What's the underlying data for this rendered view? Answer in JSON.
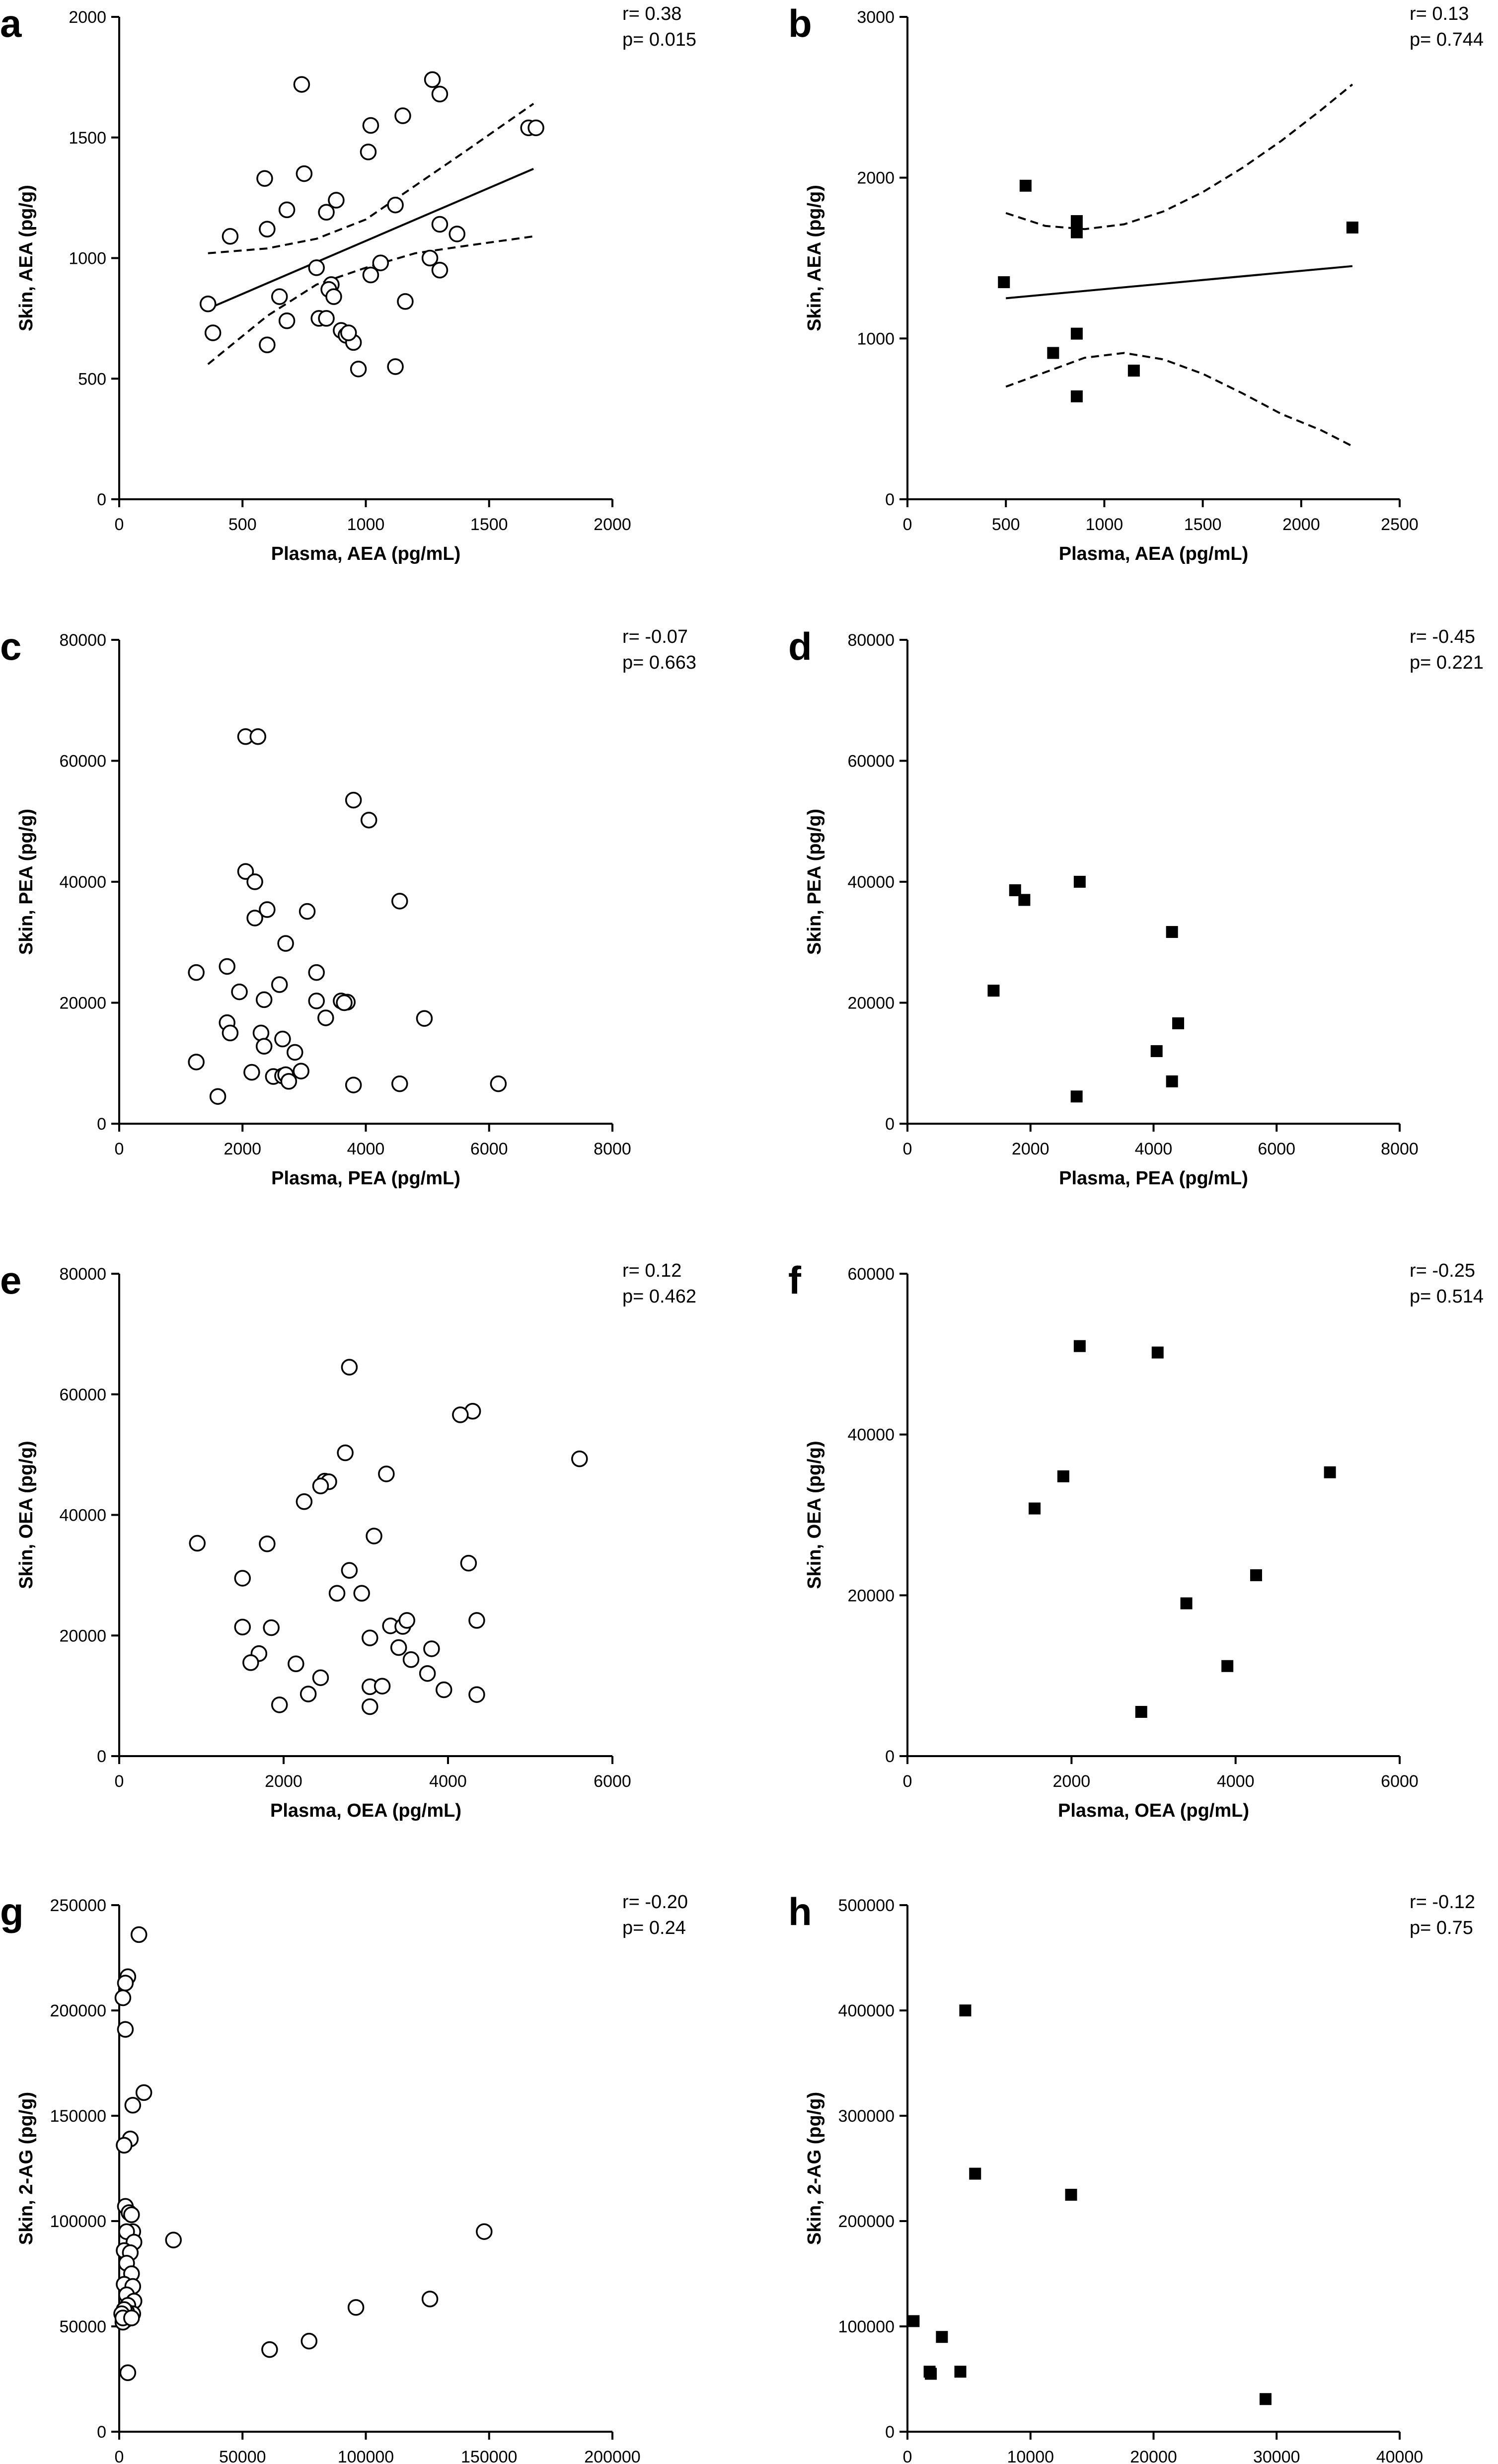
{
  "chart_data": [
    {
      "panel": "a",
      "type": "scatter",
      "marker": "open-circle",
      "xlabel": "Plasma, AEA (pg/mL)",
      "ylabel": "Skin, AEA (pg/g)",
      "xlim": [
        0,
        2000
      ],
      "ylim": [
        0,
        2000
      ],
      "xticks": [
        0,
        500,
        1000,
        1500,
        2000
      ],
      "yticks": [
        0,
        500,
        1000,
        1500,
        2000
      ],
      "xtick_labels": [
        "0",
        "500",
        "1000",
        "1500",
        "2000"
      ],
      "ytick_labels": [
        "0",
        "500",
        "1000",
        "1500",
        "2000"
      ],
      "stats": [
        "r= 0.38",
        "p= 0.015"
      ],
      "regression": {
        "x": [
          360,
          1680
        ],
        "y": [
          790,
          1370
        ]
      },
      "ci_upper": {
        "x": [
          360,
          600,
          800,
          1000,
          1200,
          1400,
          1680
        ],
        "y": [
          1020,
          1040,
          1080,
          1160,
          1300,
          1440,
          1640
        ]
      },
      "ci_lower": {
        "x": [
          360,
          600,
          800,
          1000,
          1200,
          1400,
          1680
        ],
        "y": [
          560,
          760,
          890,
          960,
          1020,
          1050,
          1090
        ]
      },
      "points": {
        "x": [
          740,
          1270,
          1300,
          1150,
          1020,
          1010,
          1660,
          1690,
          750,
          590,
          600,
          450,
          880,
          680,
          840,
          1120,
          1300,
          1370,
          1260,
          1060,
          800,
          360,
          380,
          650,
          860,
          850,
          870,
          680,
          810,
          840,
          900,
          920,
          950,
          1020,
          1160,
          1300,
          600,
          930,
          970,
          1120
        ],
        "y": [
          1720,
          1740,
          1680,
          1590,
          1550,
          1440,
          1540,
          1540,
          1350,
          1330,
          1120,
          1090,
          1240,
          1200,
          1190,
          1220,
          1140,
          1100,
          1000,
          980,
          960,
          810,
          690,
          840,
          890,
          870,
          840,
          740,
          750,
          750,
          700,
          680,
          650,
          930,
          820,
          950,
          640,
          690,
          540,
          550
        ]
      }
    },
    {
      "panel": "b",
      "type": "scatter",
      "marker": "filled-square",
      "xlabel": "Plasma, AEA (pg/mL)",
      "ylabel": "Skin, AEA (pg/g)",
      "xlim": [
        0,
        2500
      ],
      "ylim": [
        0,
        3000
      ],
      "xticks": [
        0,
        500,
        1000,
        1500,
        2000,
        2500
      ],
      "yticks": [
        0,
        1000,
        2000,
        3000
      ],
      "xtick_labels": [
        "0",
        "500",
        "1000",
        "1500",
        "2000",
        "2500"
      ],
      "ytick_labels": [
        "0",
        "1000",
        "2000",
        "3000"
      ],
      "stats": [
        "r= 0.13",
        "p= 0.744"
      ],
      "regression": {
        "x": [
          500,
          2260
        ],
        "y": [
          1250,
          1450
        ]
      },
      "ci_upper": {
        "x": [
          500,
          700,
          900,
          1100,
          1300,
          1500,
          1700,
          1900,
          2100,
          2260
        ],
        "y": [
          1780,
          1700,
          1680,
          1710,
          1790,
          1910,
          2060,
          2230,
          2420,
          2580
        ]
      },
      "ci_lower": {
        "x": [
          500,
          700,
          900,
          1100,
          1300,
          1500,
          1700,
          1900,
          2100,
          2260
        ],
        "y": [
          700,
          790,
          880,
          910,
          870,
          780,
          660,
          530,
          430,
          330
        ]
      },
      "points": {
        "x": [
          600,
          860,
          860,
          2260,
          490,
          860,
          740,
          1150,
          860
        ],
        "y": [
          1950,
          1730,
          1660,
          1690,
          1350,
          1030,
          910,
          800,
          640
        ]
      }
    },
    {
      "panel": "c",
      "type": "scatter",
      "marker": "open-circle",
      "xlabel": "Plasma, PEA (pg/mL)",
      "ylabel": "Skin, PEA (pg/g)",
      "xlim": [
        0,
        8000
      ],
      "ylim": [
        0,
        80000
      ],
      "xticks": [
        0,
        2000,
        4000,
        6000,
        8000
      ],
      "yticks": [
        0,
        20000,
        40000,
        60000,
        80000
      ],
      "xtick_labels": [
        "0",
        "2000",
        "4000",
        "6000",
        "8000"
      ],
      "ytick_labels": [
        "0",
        "20000",
        "40000",
        "60000",
        "80000"
      ],
      "stats": [
        "r= -0.07",
        "p= 0.663"
      ],
      "points": {
        "x": [
          2050,
          2250,
          3800,
          4050,
          2050,
          2200,
          4550,
          2200,
          2400,
          3050,
          2700,
          1750,
          1250,
          3200,
          2600,
          1950,
          2350,
          3200,
          3600,
          3700,
          3650,
          3350,
          1750,
          4950,
          1800,
          2300,
          2650,
          2850,
          2350,
          1600,
          1250,
          2150,
          2950,
          2500,
          2650,
          2700,
          2750,
          3800,
          4550,
          6150
        ],
        "y": [
          64000,
          64000,
          53500,
          50200,
          41700,
          40000,
          36800,
          34000,
          35400,
          35100,
          29800,
          26000,
          25000,
          25000,
          23000,
          21800,
          20500,
          20300,
          20300,
          20100,
          20000,
          17500,
          16700,
          17400,
          15000,
          15000,
          14000,
          11800,
          12800,
          4500,
          10200,
          8500,
          8700,
          7800,
          7900,
          8100,
          7000,
          6400,
          6600,
          6600
        ]
      }
    },
    {
      "panel": "d",
      "type": "scatter",
      "marker": "filled-square",
      "xlabel": "Plasma, PEA (pg/mL)",
      "ylabel": "Skin, PEA (pg/g)",
      "xlim": [
        0,
        8000
      ],
      "ylim": [
        0,
        80000
      ],
      "xticks": [
        0,
        2000,
        4000,
        6000,
        8000
      ],
      "yticks": [
        0,
        20000,
        40000,
        60000,
        80000
      ],
      "xtick_labels": [
        "0",
        "2000",
        "4000",
        "6000",
        "8000"
      ],
      "ytick_labels": [
        "0",
        "20000",
        "40000",
        "60000",
        "80000"
      ],
      "stats": [
        "r= -0.45",
        "p= 0.221"
      ],
      "points": {
        "x": [
          2800,
          1750,
          1900,
          4300,
          1400,
          4400,
          4050,
          4300,
          2750
        ],
        "y": [
          40000,
          38600,
          37000,
          31700,
          22000,
          16600,
          12000,
          7000,
          4500
        ]
      }
    },
    {
      "panel": "e",
      "type": "scatter",
      "marker": "open-circle",
      "xlabel": "Plasma, OEA (pg/mL)",
      "ylabel": "Skin, OEA (pg/g)",
      "xlim": [
        0,
        6000
      ],
      "ylim": [
        0,
        80000
      ],
      "xticks": [
        0,
        2000,
        4000,
        6000
      ],
      "yticks": [
        0,
        20000,
        40000,
        60000,
        80000
      ],
      "xtick_labels": [
        "0",
        "2000",
        "4000",
        "6000"
      ],
      "ytick_labels": [
        "0",
        "20000",
        "40000",
        "60000",
        "80000"
      ],
      "stats": [
        "r= 0.12",
        "p= 0.462"
      ],
      "points": {
        "x": [
          2800,
          4300,
          4150,
          5600,
          2750,
          3250,
          2500,
          2550,
          2450,
          2250,
          950,
          1800,
          2800,
          4250,
          1500,
          2650,
          2950,
          3100,
          4350,
          3300,
          3450,
          3500,
          1500,
          1700,
          1850,
          3050,
          3400,
          3800,
          1600,
          2150,
          3550,
          3750,
          3950,
          3050,
          3200,
          4350,
          2450,
          2300,
          1950,
          3050
        ],
        "y": [
          64500,
          57200,
          56600,
          49300,
          50300,
          46800,
          45600,
          45500,
          44800,
          42200,
          35300,
          35200,
          30800,
          32000,
          29500,
          27000,
          27000,
          36500,
          22500,
          21600,
          21500,
          22500,
          21400,
          17000,
          21300,
          19600,
          18000,
          17800,
          15500,
          15300,
          16000,
          13700,
          11000,
          11500,
          11600,
          10200,
          13000,
          10300,
          8500,
          8200
        ]
      }
    },
    {
      "panel": "f",
      "type": "scatter",
      "marker": "filled-square",
      "xlabel": "Plasma, OEA (pg/mL)",
      "ylabel": "Skin, OEA (pg/g)",
      "xlim": [
        0,
        6000
      ],
      "ylim": [
        0,
        60000
      ],
      "xticks": [
        0,
        2000,
        4000,
        6000
      ],
      "yticks": [
        0,
        20000,
        40000,
        60000
      ],
      "xtick_labels": [
        "0",
        "2000",
        "4000",
        "6000"
      ],
      "ytick_labels": [
        "0",
        "20000",
        "40000",
        "60000"
      ],
      "stats": [
        "r= -0.25",
        "p= 0.514"
      ],
      "points": {
        "x": [
          2100,
          3050,
          5150,
          1900,
          1550,
          4250,
          3400,
          3900,
          2850
        ],
        "y": [
          51000,
          50200,
          35300,
          34800,
          30800,
          22500,
          19000,
          11200,
          5500
        ]
      }
    },
    {
      "panel": "g",
      "type": "scatter",
      "marker": "open-circle",
      "xlabel": "Plasma, 2-AG (pg/mL)",
      "ylabel": "Skin, 2-AG (pg/g)",
      "xlim": [
        0,
        200000
      ],
      "ylim": [
        0,
        250000
      ],
      "xticks": [
        0,
        50000,
        100000,
        150000,
        200000
      ],
      "yticks": [
        0,
        50000,
        100000,
        150000,
        200000,
        250000
      ],
      "xtick_labels": [
        "0",
        "50000",
        "100000",
        "150000",
        "200000"
      ],
      "ytick_labels": [
        "0",
        "50000",
        "100000",
        "150000",
        "200000",
        "250000"
      ],
      "stats": [
        "r= -0.20",
        "p= 0.24"
      ],
      "points": {
        "x": [
          8000,
          3500,
          2500,
          1500,
          2500,
          10000,
          5500,
          4500,
          2000,
          2500,
          4000,
          5000,
          5500,
          3000,
          6000,
          2000,
          4500,
          3000,
          5000,
          2000,
          5500,
          3000,
          6000,
          3500,
          5500,
          1500,
          2500,
          1500,
          3500,
          22000,
          148000,
          126000,
          96000,
          77000,
          61000,
          3000,
          2000,
          1000,
          1500,
          5000
        ],
        "y": [
          236000,
          216000,
          213000,
          206000,
          191000,
          161000,
          155000,
          139000,
          136000,
          107000,
          104000,
          103000,
          95000,
          95000,
          90000,
          86000,
          85000,
          80000,
          75000,
          70000,
          69000,
          65000,
          62000,
          60000,
          56000,
          55000,
          53000,
          52000,
          28000,
          91000,
          95000,
          63000,
          59000,
          43000,
          39000,
          57000,
          58000,
          56000,
          54000,
          54000
        ]
      }
    },
    {
      "panel": "h",
      "type": "scatter",
      "marker": "filled-square",
      "xlabel": "Plasma, 2-AG (pg/mL)",
      "ylabel": "Skin, 2-AG (pg/g)",
      "xlim": [
        0,
        40000
      ],
      "ylim": [
        0,
        500000
      ],
      "xticks": [
        0,
        10000,
        20000,
        30000,
        40000
      ],
      "yticks": [
        0,
        100000,
        200000,
        300000,
        400000,
        500000
      ],
      "xtick_labels": [
        "0",
        "10000",
        "20000",
        "30000",
        "40000"
      ],
      "ytick_labels": [
        "0",
        "100000",
        "200000",
        "300000",
        "400000",
        "500000"
      ],
      "stats": [
        "r= -0.12",
        "p= 0.75"
      ],
      "points": {
        "x": [
          4700,
          5500,
          13300,
          500,
          2800,
          1800,
          1900,
          4300,
          29100
        ],
        "y": [
          400000,
          245000,
          225000,
          105000,
          90000,
          57000,
          55000,
          57000,
          31000
        ]
      }
    }
  ]
}
